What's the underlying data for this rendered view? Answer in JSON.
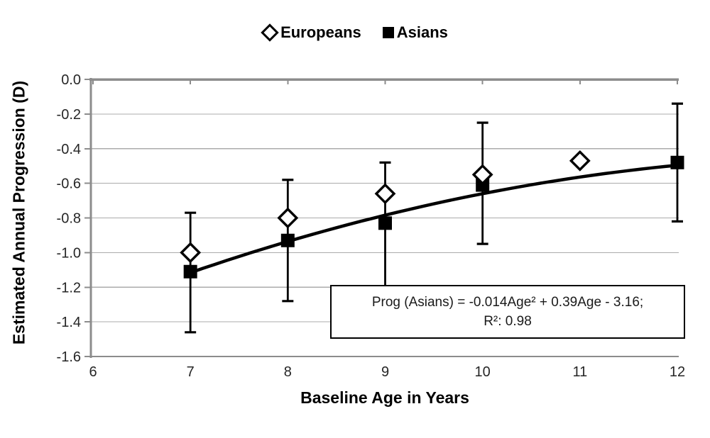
{
  "legend": {
    "items": [
      {
        "label": "Europeans",
        "marker": "open-diamond-icon"
      },
      {
        "label": "Asians",
        "marker": "filled-square-icon"
      }
    ]
  },
  "axes": {
    "y_title": "Estimated Annual Progression (D)",
    "x_title": "Baseline Age in Years",
    "y_tick_labels": [
      "0.0",
      "-0.2",
      "-0.4",
      "-0.6",
      "-0.8",
      "-1.0",
      "-1.2",
      "-1.4",
      "-1.6"
    ],
    "x_tick_labels": [
      "6",
      "7",
      "8",
      "9",
      "10",
      "11",
      "12"
    ]
  },
  "equation_box": {
    "line1": "Prog  (Asians) = -0.014Age² + 0.39Age - 3.16;",
    "line2": "R²: 0.98"
  },
  "chart_data": {
    "type": "scatter",
    "title": "",
    "xlabel": "Baseline Age in Years",
    "ylabel": "Estimated Annual Progression (D)",
    "xlim": [
      6,
      12
    ],
    "ylim": [
      -1.6,
      0.0
    ],
    "x_ticks": [
      6,
      7,
      8,
      9,
      10,
      11,
      12
    ],
    "y_ticks": [
      0.0,
      -0.2,
      -0.4,
      -0.6,
      -0.8,
      -1.0,
      -1.2,
      -1.4,
      -1.6
    ],
    "grid": true,
    "legend_position": "top-center",
    "series": [
      {
        "name": "Europeans",
        "marker": "open-diamond",
        "x": [
          7,
          8,
          9,
          10,
          11
        ],
        "y": [
          -1.0,
          -0.8,
          -0.66,
          -0.55,
          -0.47
        ]
      },
      {
        "name": "Asians",
        "marker": "filled-square",
        "x": [
          7,
          8,
          9,
          10,
          12
        ],
        "y": [
          -1.11,
          -0.93,
          -0.83,
          -0.61,
          -0.48
        ],
        "error_upper": [
          -0.77,
          -0.58,
          -0.48,
          -0.25,
          -0.14
        ],
        "error_lower": [
          -1.46,
          -1.28,
          -1.25,
          -0.95,
          -0.82
        ],
        "note": "lower error cap at age 9 is hidden behind the equation box"
      }
    ],
    "fit_curve": {
      "name": "Asians quadratic fit",
      "coefficients": {
        "age2": -0.014,
        "age1": 0.39,
        "const": -3.16
      },
      "r_squared": 0.98,
      "x_range": [
        7,
        12
      ]
    },
    "colors": {
      "marker": "#000000",
      "curve": "#000000",
      "axis": "#8c8c8c",
      "gridline": "#ababab",
      "tick_text": "#262626",
      "title_text": "#000000",
      "background": "#ffffff"
    }
  }
}
